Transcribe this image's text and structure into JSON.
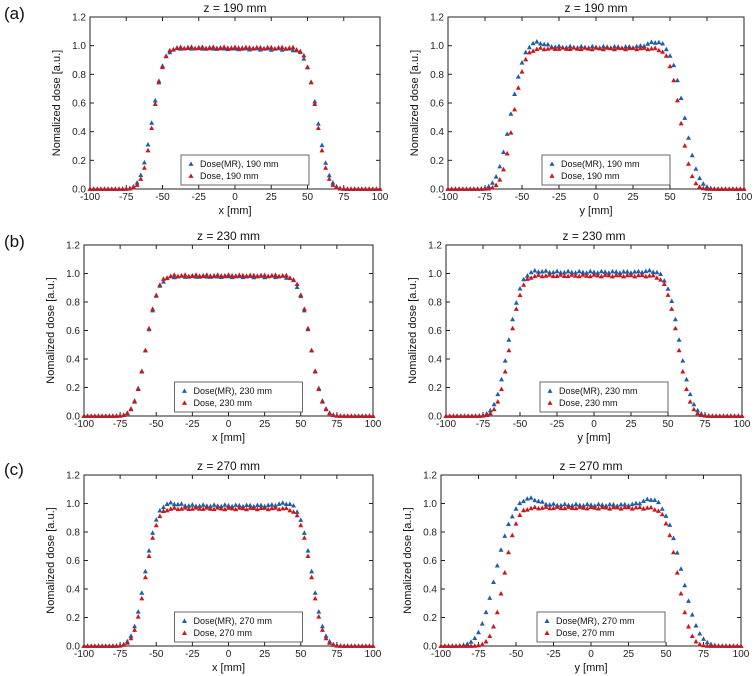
{
  "figure": {
    "row_labels": [
      "(a)",
      "(b)",
      "(c)"
    ],
    "colors": {
      "mr": "#1f5fa8",
      "dose": "#c8181e",
      "axis": "#222222"
    }
  },
  "chart_data": [
    {
      "id": "a-left",
      "type": "scatter",
      "title": "z = 190 mm",
      "xlabel": "x [mm]",
      "ylabel": "Nomalized dose [a.u.]",
      "xlim": [
        -100,
        100
      ],
      "ylim": [
        0,
        1.2
      ],
      "xticks": [
        -100,
        -75,
        -50,
        -25,
        0,
        25,
        50,
        75,
        100
      ],
      "yticks": [
        0,
        0.2,
        0.4,
        0.6,
        0.8,
        1.0,
        1.2
      ],
      "legend": [
        "Dose(MR), 190 mm",
        "Dose, 190 mm"
      ],
      "legend_position": "bottom-center",
      "series": [
        {
          "name": "Dose(MR), 190 mm",
          "profile": {
            "half_width_left": 57,
            "half_width_right": 57,
            "edge_sigma": 6.2,
            "plateau": 0.98,
            "shoulder": 0.0,
            "tilt": -0.005
          }
        },
        {
          "name": "Dose, 190 mm",
          "profile": {
            "half_width_left": 56.5,
            "half_width_right": 56.5,
            "edge_sigma": 5.8,
            "plateau": 0.985,
            "shoulder": 0.0,
            "tilt": 0.0
          }
        }
      ],
      "x_step": 2.5
    },
    {
      "id": "a-right",
      "type": "scatter",
      "title": "z = 190 mm",
      "xlabel": "y [mm]",
      "ylabel": "Nomalized dose [a.u.]",
      "xlim": [
        -100,
        100
      ],
      "ylim": [
        0,
        1.2
      ],
      "xticks": [
        -100,
        -75,
        -50,
        -25,
        0,
        25,
        50,
        75,
        100
      ],
      "yticks": [
        0,
        0.2,
        0.4,
        0.6,
        0.8,
        1.0,
        1.2
      ],
      "legend": [
        "Dose(MR), 190 mm",
        "Dose, 190 mm"
      ],
      "legend_position": "bottom-center",
      "series": [
        {
          "name": "Dose(MR), 190 mm",
          "profile": {
            "half_width_left": 58,
            "half_width_right": 60,
            "edge_sigma": 7.0,
            "plateau": 0.99,
            "shoulder": 0.04,
            "tilt": 0.0
          }
        },
        {
          "name": "Dose, 190 mm",
          "profile": {
            "half_width_left": 56,
            "half_width_right": 57,
            "edge_sigma": 6.0,
            "plateau": 0.98,
            "shoulder": 0.0,
            "tilt": 0.0
          }
        }
      ],
      "x_step": 2.5
    },
    {
      "id": "b-left",
      "type": "scatter",
      "title": "z = 230 mm",
      "xlabel": "x [mm]",
      "ylabel": "Nomalized dose [a.u.]",
      "xlim": [
        -100,
        100
      ],
      "ylim": [
        0,
        1.2
      ],
      "xticks": [
        -100,
        -75,
        -50,
        -25,
        0,
        25,
        50,
        75,
        100
      ],
      "yticks": [
        0,
        0.2,
        0.4,
        0.6,
        0.8,
        1.0,
        1.2
      ],
      "legend": [
        "Dose(MR), 230 mm",
        "Dose, 230 mm"
      ],
      "legend_position": "bottom-center",
      "series": [
        {
          "name": "Dose(MR), 230 mm",
          "profile": {
            "half_width_left": 57,
            "half_width_right": 57,
            "edge_sigma": 6.5,
            "plateau": 0.98,
            "shoulder": 0.0,
            "tilt": 0.0
          }
        },
        {
          "name": "Dose, 230 mm",
          "profile": {
            "half_width_left": 57,
            "half_width_right": 57,
            "edge_sigma": 6.3,
            "plateau": 0.985,
            "shoulder": 0.0,
            "tilt": 0.0
          }
        }
      ],
      "x_step": 2.5
    },
    {
      "id": "b-right",
      "type": "scatter",
      "title": "z = 230 mm",
      "xlabel": "y [mm]",
      "ylabel": "Nomalized dose [a.u.]",
      "xlim": [
        -100,
        100
      ],
      "ylim": [
        0,
        1.2
      ],
      "xticks": [
        -100,
        -75,
        -50,
        -25,
        0,
        25,
        50,
        75,
        100
      ],
      "yticks": [
        0,
        0.2,
        0.4,
        0.6,
        0.8,
        1.0,
        1.2
      ],
      "legend": [
        "Dose(MR), 230 mm",
        "Dose, 230 mm"
      ],
      "legend_position": "bottom-center",
      "series": [
        {
          "name": "Dose(MR), 230 mm",
          "profile": {
            "half_width_left": 58,
            "half_width_right": 58,
            "edge_sigma": 6.8,
            "plateau": 1.01,
            "shoulder": 0.01,
            "tilt": 0.0
          }
        },
        {
          "name": "Dose, 230 mm",
          "profile": {
            "half_width_left": 57,
            "half_width_right": 57,
            "edge_sigma": 6.3,
            "plateau": 0.985,
            "shoulder": 0.0,
            "tilt": 0.0
          }
        }
      ],
      "x_step": 2.5
    },
    {
      "id": "c-left",
      "type": "scatter",
      "title": "z = 270 mm",
      "xlabel": "x [mm]",
      "ylabel": "Nomalized dose [a.u.]",
      "xlim": [
        -100,
        100
      ],
      "ylim": [
        0,
        1.2
      ],
      "xticks": [
        -100,
        -75,
        -50,
        -25,
        0,
        25,
        50,
        75,
        100
      ],
      "yticks": [
        0,
        0.2,
        0.4,
        0.6,
        0.8,
        1.0,
        1.2
      ],
      "legend": [
        "Dose(MR), 270 mm",
        "Dose, 270 mm"
      ],
      "legend_position": "bottom-center",
      "series": [
        {
          "name": "Dose(MR), 270 mm",
          "profile": {
            "half_width_left": 58,
            "half_width_right": 58,
            "edge_sigma": 6.5,
            "plateau": 0.985,
            "shoulder": 0.02,
            "tilt": 0.0
          }
        },
        {
          "name": "Dose, 270 mm",
          "profile": {
            "half_width_left": 57.5,
            "half_width_right": 57.5,
            "edge_sigma": 6.3,
            "plateau": 0.965,
            "shoulder": 0.0,
            "tilt": 0.0
          }
        }
      ],
      "x_step": 2.5
    },
    {
      "id": "c-right",
      "type": "scatter",
      "title": "z = 270 mm",
      "xlabel": "y [mm]",
      "ylabel": "Nomalized dose [a.u.]",
      "xlim": [
        -100,
        100
      ],
      "ylim": [
        0,
        1.2
      ],
      "xticks": [
        -100,
        -75,
        -50,
        -25,
        0,
        25,
        50,
        75,
        100
      ],
      "yticks": [
        0,
        0.2,
        0.4,
        0.6,
        0.8,
        1.0,
        1.2
      ],
      "legend": [
        "Dose(MR), 270 mm",
        "Dose, 270 mm"
      ],
      "legend_position": "bottom-center",
      "series": [
        {
          "name": "Dose(MR), 270 mm",
          "profile": {
            "half_width_left": 64,
            "half_width_right": 61,
            "edge_sigma": 8.5,
            "plateau": 0.99,
            "shoulder": 0.05,
            "tilt": 0.0
          }
        },
        {
          "name": "Dose, 270 mm",
          "profile": {
            "half_width_left": 58,
            "half_width_right": 58,
            "edge_sigma": 6.5,
            "plateau": 0.97,
            "shoulder": 0.0,
            "tilt": 0.0
          }
        }
      ],
      "x_step": 2.5
    }
  ]
}
